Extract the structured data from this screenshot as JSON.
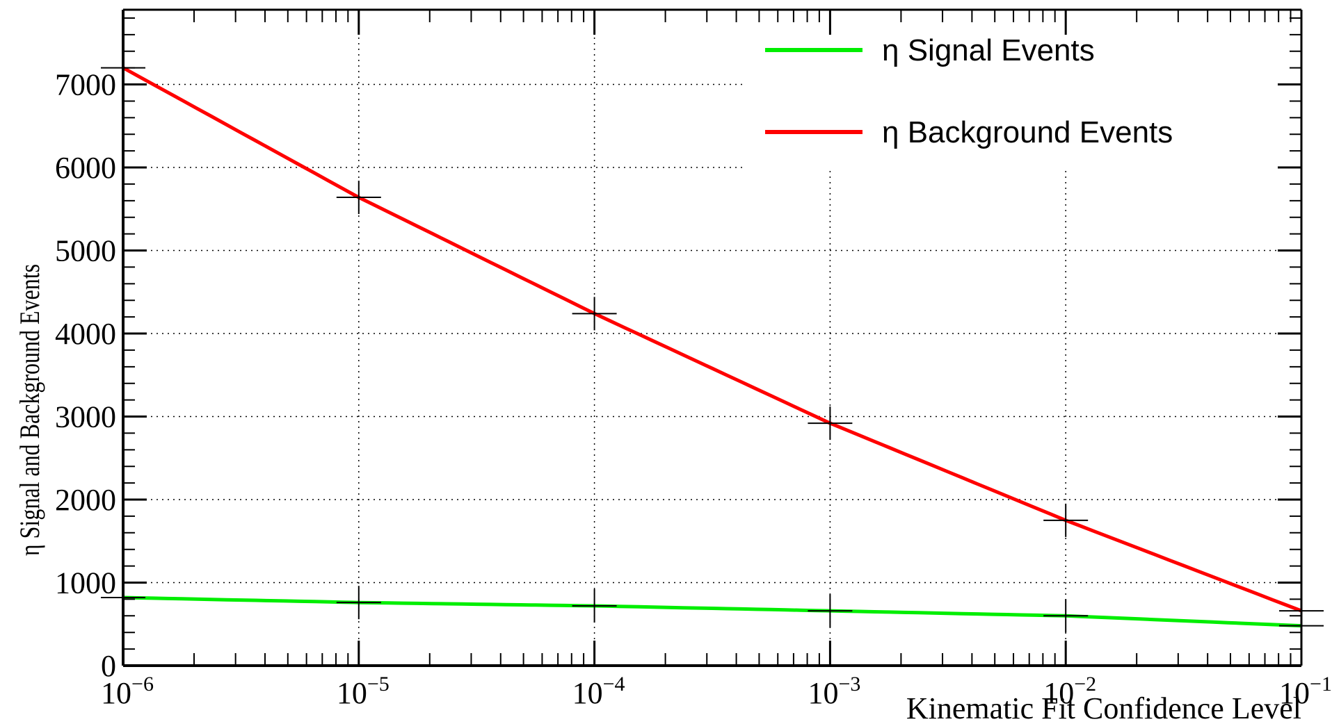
{
  "chart_data": {
    "type": "line",
    "xscale": "log",
    "xlim": [
      1e-06,
      0.1
    ],
    "ylim": [
      0,
      7900
    ],
    "grid": true,
    "xlabel": "Kinematic Fit Confidence Level",
    "ylabel": "η Signal and Background Events",
    "x_ticks": [
      {
        "value": 1e-06,
        "base": "10",
        "exp": "−6"
      },
      {
        "value": 1e-05,
        "base": "10",
        "exp": "−5"
      },
      {
        "value": 0.0001,
        "base": "10",
        "exp": "−4"
      },
      {
        "value": 0.001,
        "base": "10",
        "exp": "−3"
      },
      {
        "value": 0.01,
        "base": "10",
        "exp": "−2"
      },
      {
        "value": 0.1,
        "base": "10",
        "exp": "−1"
      }
    ],
    "y_ticks": [
      {
        "value": 0,
        "label": "0"
      },
      {
        "value": 1000,
        "label": "1000"
      },
      {
        "value": 2000,
        "label": "2000"
      },
      {
        "value": 3000,
        "label": "3000"
      },
      {
        "value": 4000,
        "label": "4000"
      },
      {
        "value": 5000,
        "label": "5000"
      },
      {
        "value": 6000,
        "label": "6000"
      },
      {
        "value": 7000,
        "label": "7000"
      }
    ],
    "legend_position": "top-right",
    "series": [
      {
        "name": "η Signal Events",
        "color": "#00ee00",
        "x": [
          1e-06,
          1e-05,
          0.0001,
          0.001,
          0.01,
          0.1
        ],
        "y": [
          820,
          760,
          720,
          660,
          600,
          480
        ]
      },
      {
        "name": "η Background Events",
        "color": "#ff0000",
        "x": [
          1e-06,
          1e-05,
          0.0001,
          0.001,
          0.01,
          0.1
        ],
        "y": [
          7200,
          5640,
          4240,
          2920,
          1750,
          660
        ]
      }
    ]
  }
}
